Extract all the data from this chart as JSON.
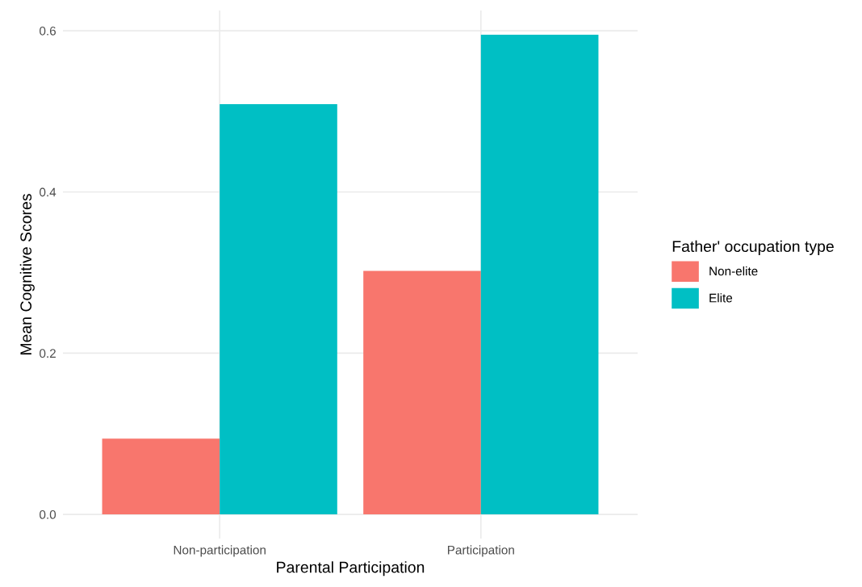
{
  "chart_data": {
    "type": "bar",
    "xlabel": "Parental Participation",
    "ylabel": "Mean Cognitive Scores",
    "legend_title": "Father' occupation type",
    "categories": [
      "Non-participation",
      "Participation"
    ],
    "series": [
      {
        "name": "Non-elite",
        "color": "#f8766d",
        "values": [
          0.094,
          0.302
        ]
      },
      {
        "name": "Elite",
        "color": "#00bfc4",
        "values": [
          0.509,
          0.595
        ]
      }
    ],
    "ylim": [
      -0.03,
      0.625
    ],
    "yticks": [
      {
        "value": 0,
        "label": "0.0"
      },
      {
        "value": 0.2,
        "label": "0.2"
      },
      {
        "value": 0.4,
        "label": "0.4"
      },
      {
        "value": 0.6,
        "label": "0.6"
      }
    ],
    "grid": true,
    "legend": "right"
  }
}
